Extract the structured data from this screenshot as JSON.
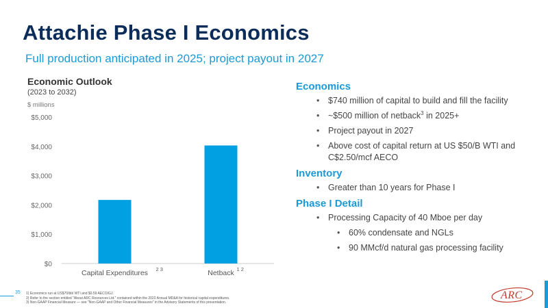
{
  "header": {
    "title": "Attachie Phase I Economics",
    "subtitle": "Full production anticipated in 2025; project payout in 2027"
  },
  "chart_panel": {
    "title": "Economic Outlook",
    "subtitle": "(2023 to 2032)",
    "unit": "$ millions"
  },
  "chart_data": {
    "type": "bar",
    "title": "Economic Outlook",
    "subtitle": "(2023 to 2032)",
    "ylabel": "$ millions",
    "categories": [
      "Capital Expenditures",
      "Netback"
    ],
    "category_superscripts": [
      "2 3",
      "1 2"
    ],
    "values": [
      2170,
      4030
    ],
    "ylim": [
      0,
      5000
    ],
    "yticks": [
      0,
      1000,
      2000,
      3000,
      4000,
      5000
    ],
    "ytick_labels": [
      "$0",
      "$1,000",
      "$2,000",
      "$3,000",
      "$4,000",
      "$5,000"
    ],
    "bar_color": "#00a0e3",
    "grid": false,
    "legend": "none"
  },
  "sections": [
    {
      "heading": "Economics",
      "bullets": [
        {
          "text": "$740 million of capital to build and fill the facility"
        },
        {
          "text": "~$500 million of netback",
          "sup": "3",
          "tail": " in 2025+"
        },
        {
          "text": "Project payout in 2027"
        },
        {
          "text": "Above cost of capital return at US $50/B WTI and C$2.50/mcf AECO"
        }
      ]
    },
    {
      "heading": "Inventory",
      "bullets": [
        {
          "text": "Greater than 10 years for Phase I"
        }
      ]
    },
    {
      "heading": "Phase I Detail",
      "bullets": [
        {
          "text": "Processing Capacity of 40 Mboe per day"
        },
        {
          "text": "60% condensate and NGLs",
          "sub": true
        },
        {
          "text": "90 MMcf/d natural gas processing facility",
          "sub": true
        }
      ]
    }
  ],
  "footer": {
    "page_number": "35",
    "footnotes": [
      "1)  Economics run at US$70/bbl WTI and $0.59 AECO/GJ.",
      "2)  Refer to the section entitled \"About ARC Resources Ltd.\" contained within the 2022 Annual MD&A for historical capital expenditures.",
      "3)  Non-GAAP Financial Measure — see \"Non-GAAP and Other Financial Measures\" in the Advisory Statements of this presentation."
    ],
    "logo_text": "ARC"
  },
  "colors": {
    "title": "#0c2d5a",
    "accent": "#1a9ad6",
    "bar": "#00a0e3",
    "logo": "#c0392b"
  }
}
